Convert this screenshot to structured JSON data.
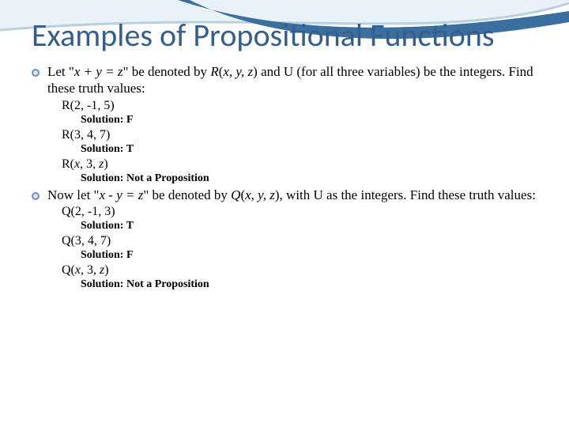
{
  "slide": {
    "title": "Examples of Propositional Functions",
    "title_color": "#355e8c",
    "title_fontsize": 40,
    "body_fontsize": 17,
    "sub1_fontsize": 16,
    "sub2_fontsize": 14,
    "bullet_fill": "#d9e6f2",
    "bullet_border": "#6b92b8",
    "swoosh_top_fill": "#eaf2f8",
    "swoosh_line_narrow": "#b8d0e0",
    "swoosh_line_wide": "#3a6fa0",
    "background": "#ffffff",
    "bullets": [
      {
        "text_parts": [
          {
            "t": "Let \"",
            "i": false
          },
          {
            "t": "x + y = z",
            "i": true
          },
          {
            "t": "\" be denoted by  ",
            "i": false
          },
          {
            "t": "R",
            "i": true
          },
          {
            "t": "(",
            "i": false
          },
          {
            "t": "x, y, z",
            "i": true
          },
          {
            "t": ") and U (for all three variables) be the integers. Find these truth values:",
            "i": false
          }
        ],
        "examples": [
          {
            "expr": "R(2, -1, 5)",
            "sol": "Solution:  F"
          },
          {
            "expr": "R(3, 4, 7)",
            "sol": "Solution: T"
          },
          {
            "expr_html": "R(<i>x</i>, 3, <i>z</i>)",
            "sol": "Solution: Not a Proposition"
          }
        ]
      },
      {
        "text_parts": [
          {
            "t": "Now let  \"",
            "i": false
          },
          {
            "t": "x - y = z",
            "i": true
          },
          {
            "t": "\" be denoted by ",
            "i": false
          },
          {
            "t": "Q",
            "i": true
          },
          {
            "t": "(",
            "i": false
          },
          {
            "t": "x, y, z",
            "i": true
          },
          {
            "t": "), with U as the integers. Find these truth values:",
            "i": false
          }
        ],
        "examples": [
          {
            "expr": "Q(2, -1, 3)",
            "sol": "Solution:  T"
          },
          {
            "expr": "Q(3, 4, 7)",
            "sol": "Solution: F"
          },
          {
            "expr_html": " Q(<i>x</i>, 3, <i>z</i>)",
            "sol": "Solution:  Not a Proposition"
          }
        ]
      }
    ]
  }
}
